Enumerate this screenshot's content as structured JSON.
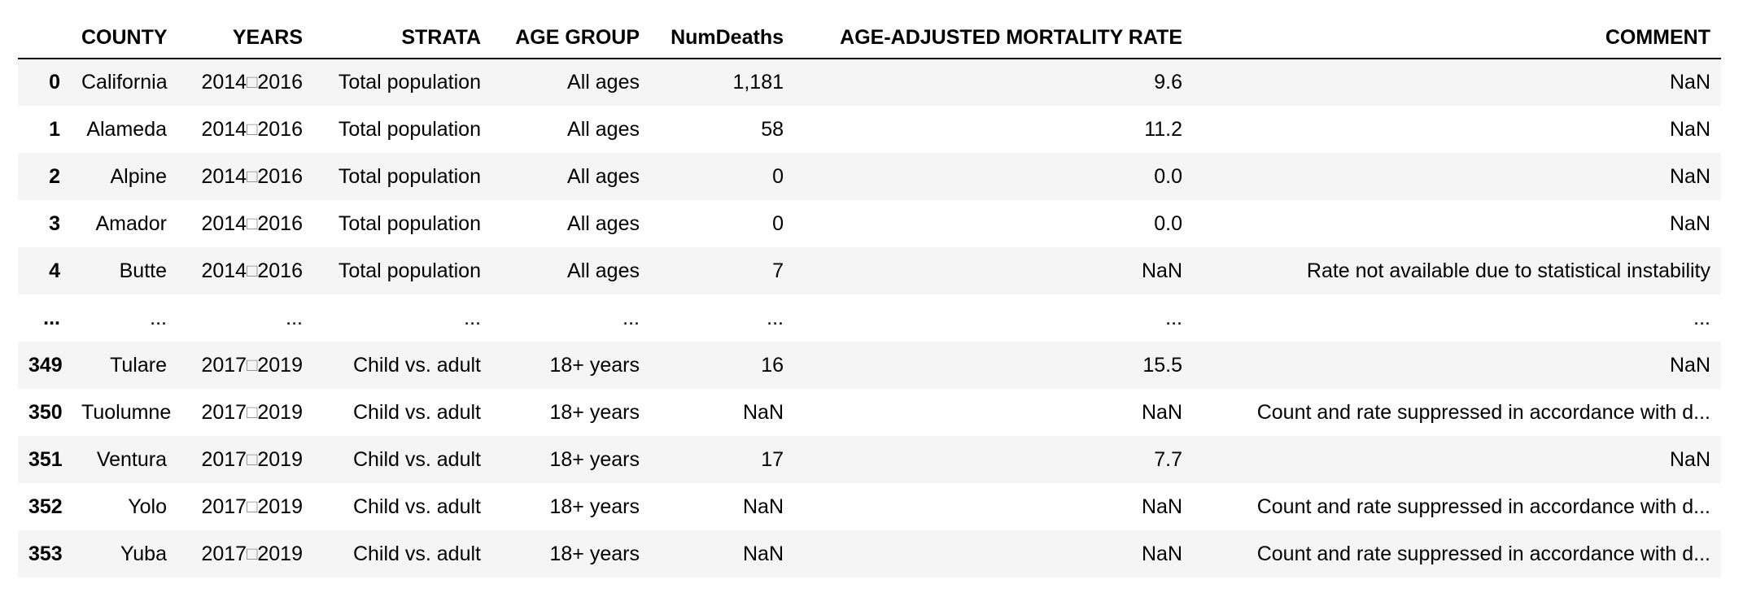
{
  "columns": {
    "index": "",
    "county": "COUNTY",
    "years": "YEARS",
    "strata": "STRATA",
    "age_group": "AGE GROUP",
    "num_deaths": "NumDeaths",
    "rate": "AGE-ADJUSTED MORTALITY RATE",
    "comment": "COMMENT"
  },
  "rows": [
    {
      "index": "0",
      "county": "California",
      "years": [
        "2014",
        "□",
        "2016"
      ],
      "strata": "Total population",
      "age_group": "All ages",
      "num_deaths": "1,181",
      "rate": "9.6",
      "comment": "NaN"
    },
    {
      "index": "1",
      "county": "Alameda",
      "years": [
        "2014",
        "□",
        "2016"
      ],
      "strata": "Total population",
      "age_group": "All ages",
      "num_deaths": "58",
      "rate": "11.2",
      "comment": "NaN"
    },
    {
      "index": "2",
      "county": "Alpine",
      "years": [
        "2014",
        "□",
        "2016"
      ],
      "strata": "Total population",
      "age_group": "All ages",
      "num_deaths": "0",
      "rate": "0.0",
      "comment": "NaN"
    },
    {
      "index": "3",
      "county": "Amador",
      "years": [
        "2014",
        "□",
        "2016"
      ],
      "strata": "Total population",
      "age_group": "All ages",
      "num_deaths": "0",
      "rate": "0.0",
      "comment": "NaN"
    },
    {
      "index": "4",
      "county": "Butte",
      "years": [
        "2014",
        "□",
        "2016"
      ],
      "strata": "Total population",
      "age_group": "All ages",
      "num_deaths": "7",
      "rate": "NaN",
      "comment": "Rate not available due to statistical instability"
    },
    {
      "index": "...",
      "county": "...",
      "years": [
        "...",
        "",
        ""
      ],
      "strata": "...",
      "age_group": "...",
      "num_deaths": "...",
      "rate": "...",
      "comment": "..."
    },
    {
      "index": "349",
      "county": "Tulare",
      "years": [
        "2017",
        "□",
        "2019"
      ],
      "strata": "Child vs. adult",
      "age_group": "18+ years",
      "num_deaths": "16",
      "rate": "15.5",
      "comment": "NaN"
    },
    {
      "index": "350",
      "county": "Tuolumne",
      "years": [
        "2017",
        "□",
        "2019"
      ],
      "strata": "Child vs. adult",
      "age_group": "18+ years",
      "num_deaths": "NaN",
      "rate": "NaN",
      "comment": "Count and rate suppressed in accordance with d..."
    },
    {
      "index": "351",
      "county": "Ventura",
      "years": [
        "2017",
        "□",
        "2019"
      ],
      "strata": "Child vs. adult",
      "age_group": "18+ years",
      "num_deaths": "17",
      "rate": "7.7",
      "comment": "NaN"
    },
    {
      "index": "352",
      "county": "Yolo",
      "years": [
        "2017",
        "□",
        "2019"
      ],
      "strata": "Child vs. adult",
      "age_group": "18+ years",
      "num_deaths": "NaN",
      "rate": "NaN",
      "comment": "Count and rate suppressed in accordance with d..."
    },
    {
      "index": "353",
      "county": "Yuba",
      "years": [
        "2017",
        "□",
        "2019"
      ],
      "strata": "Child vs. adult",
      "age_group": "18+ years",
      "num_deaths": "NaN",
      "rate": "NaN",
      "comment": "Count and rate suppressed in accordance with d..."
    }
  ]
}
